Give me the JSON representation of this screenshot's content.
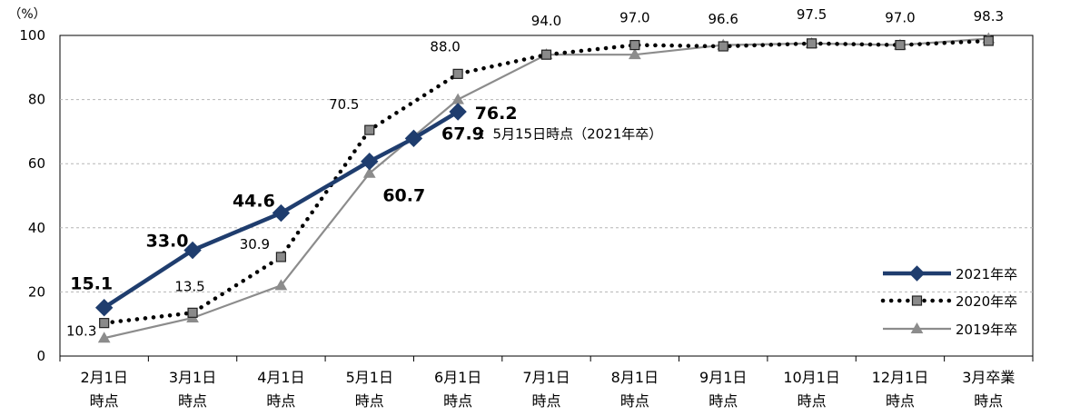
{
  "chart_data": {
    "type": "line",
    "unit_label": "（%）",
    "categories": [
      [
        "2月1日",
        "時点"
      ],
      [
        "3月1日",
        "時点"
      ],
      [
        "4月1日",
        "時点"
      ],
      [
        "5月1日",
        "時点"
      ],
      [
        "6月1日",
        "時点"
      ],
      [
        "7月1日",
        "時点"
      ],
      [
        "8月1日",
        "時点"
      ],
      [
        "9月1日",
        "時点"
      ],
      [
        "10月1日",
        "時点"
      ],
      [
        "12月1日",
        "時点"
      ],
      [
        "3月卒業",
        "時点"
      ]
    ],
    "ylim": [
      0,
      100
    ],
    "yticks": [
      0,
      20,
      40,
      60,
      80,
      100
    ],
    "grid": true,
    "legend_position": "bottom-right",
    "series": [
      {
        "name": "2021年卒",
        "style": "solid-thick",
        "marker": "diamond",
        "color": "#1f3d6e",
        "points": [
          {
            "x": 0,
            "y": 15.1
          },
          {
            "x": 1,
            "y": 33.0
          },
          {
            "x": 2,
            "y": 44.6
          },
          {
            "x": 3,
            "y": 60.7
          },
          {
            "x": 3.5,
            "y": 67.9
          },
          {
            "x": 4,
            "y": 76.2
          }
        ]
      },
      {
        "name": "2020年卒",
        "style": "dotted",
        "marker": "square",
        "color": "#000000",
        "values": [
          10.3,
          13.5,
          30.9,
          70.5,
          88.0,
          94.0,
          97.0,
          96.6,
          97.5,
          97.0,
          98.3
        ]
      },
      {
        "name": "2019年卒",
        "style": "solid",
        "marker": "triangle",
        "color": "#8c8c8c",
        "values": [
          5.6,
          11.9,
          22.0,
          57.0,
          80.0,
          94.0,
          94.0,
          97.0,
          97.5,
          97.0,
          99.0
        ]
      }
    ],
    "data_labels_2021": [
      "15.1",
      "33.0",
      "44.6",
      "60.7",
      "67.9",
      "76.2"
    ],
    "data_labels_2020": [
      "10.3",
      "13.5",
      "30.9",
      "70.5",
      "88.0",
      "94.0",
      "97.0",
      "96.6",
      "97.5",
      "97.0",
      "98.3"
    ],
    "annotation": "：5月15日時点（2021年卒）"
  }
}
